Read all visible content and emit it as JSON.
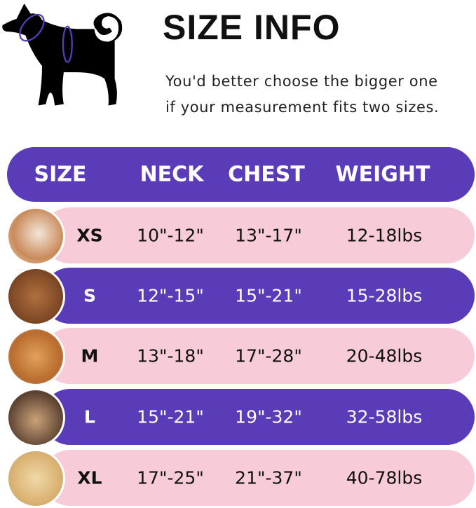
{
  "title": "SIZE INFO",
  "note_line1": "You'd better choose the bigger one",
  "note_line2": "if your measurement fits two sizes.",
  "colors": {
    "purple": "#5a3cb9",
    "pink": "#f7ccd8"
  },
  "headers": {
    "size": "SIZE",
    "neck": "NECK",
    "chest": "CHEST",
    "weight": "WEIGHT"
  },
  "rows": [
    {
      "size": "XS",
      "neck": "10\"-12\"",
      "chest": "13\"-17\"",
      "weight": "12-18lbs",
      "style": "pink"
    },
    {
      "size": "S",
      "neck": "12\"-15\"",
      "chest": "15\"-21\"",
      "weight": "15-28lbs",
      "style": "purple"
    },
    {
      "size": "M",
      "neck": "13\"-18\"",
      "chest": "17\"-28\"",
      "weight": "20-48lbs",
      "style": "pink"
    },
    {
      "size": "L",
      "neck": "15\"-21\"",
      "chest": "19\"-32\"",
      "weight": "32-58lbs",
      "style": "purple"
    },
    {
      "size": "XL",
      "neck": "17\"-25\"",
      "chest": "21\"-37\"",
      "weight": "40-78lbs",
      "style": "pink"
    }
  ]
}
